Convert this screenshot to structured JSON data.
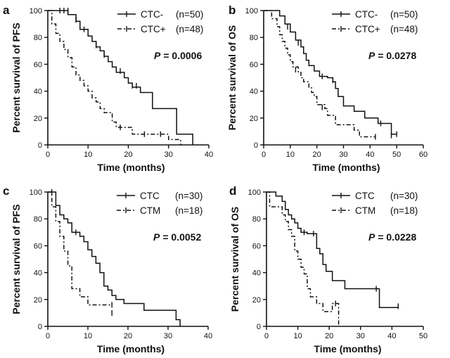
{
  "chart_data": [
    {
      "type": "line",
      "panel": "a",
      "ylabel": "Percent survival of PFS",
      "xlabel": "Time (months)",
      "xlim": [
        0,
        40
      ],
      "xticks": [
        0,
        10,
        20,
        30,
        40
      ],
      "ylim": [
        0,
        100
      ],
      "yticks": [
        0,
        20,
        40,
        60,
        80,
        100
      ],
      "pvalue_label": "P",
      "pvalue_text": "= 0.0006",
      "series": [
        {
          "name": "CTC-",
          "n_text": "(n=50)",
          "style": "solid",
          "steps": [
            [
              0,
              100
            ],
            [
              5,
              97
            ],
            [
              7,
              92
            ],
            [
              8,
              86
            ],
            [
              10,
              81
            ],
            [
              11,
              77
            ],
            [
              12,
              73
            ],
            [
              13,
              70
            ],
            [
              14,
              66
            ],
            [
              15,
              62
            ],
            [
              16,
              58
            ],
            [
              17,
              54
            ],
            [
              19,
              50
            ],
            [
              20,
              46
            ],
            [
              21,
              43
            ],
            [
              23,
              39
            ],
            [
              26,
              27
            ],
            [
              32,
              8
            ],
            [
              36,
              0
            ]
          ],
          "censors": [
            [
              3,
              100
            ],
            [
              4,
              100
            ],
            [
              5,
              100
            ],
            [
              7,
              93
            ],
            [
              9,
              86
            ],
            [
              12,
              74
            ],
            [
              14,
              67
            ],
            [
              18,
              55
            ],
            [
              21,
              44
            ],
            [
              22,
              44
            ]
          ]
        },
        {
          "name": "CTC+",
          "n_text": "(n=48)",
          "style": "dash-dot",
          "steps": [
            [
              0,
              100
            ],
            [
              1,
              90
            ],
            [
              2,
              83
            ],
            [
              3,
              77
            ],
            [
              4,
              71
            ],
            [
              5,
              65
            ],
            [
              6,
              58
            ],
            [
              7,
              52
            ],
            [
              8,
              48
            ],
            [
              9,
              44
            ],
            [
              10,
              40
            ],
            [
              11,
              35
            ],
            [
              12,
              32
            ],
            [
              13,
              27
            ],
            [
              14,
              24
            ],
            [
              16,
              17
            ],
            [
              17,
              13
            ],
            [
              21,
              8
            ],
            [
              30,
              4
            ],
            [
              33,
              0
            ]
          ],
          "censors": [
            [
              18,
              13
            ],
            [
              24,
              8
            ],
            [
              28,
              8
            ]
          ]
        }
      ]
    },
    {
      "type": "line",
      "panel": "b",
      "ylabel": "Percent survival of OS",
      "xlabel": "Time (months)",
      "xlim": [
        0,
        60
      ],
      "xticks": [
        0,
        10,
        20,
        30,
        40,
        50,
        60
      ],
      "ylim": [
        0,
        100
      ],
      "yticks": [
        0,
        20,
        40,
        60,
        80,
        100
      ],
      "pvalue_label": "P",
      "pvalue_text": "= 0.0278",
      "series": [
        {
          "name": "CTC-",
          "n_text": "(n=50)",
          "style": "solid",
          "steps": [
            [
              0,
              100
            ],
            [
              6,
              96
            ],
            [
              8,
              90
            ],
            [
              10,
              84
            ],
            [
              12,
              78
            ],
            [
              14,
              73
            ],
            [
              15,
              68
            ],
            [
              16,
              63
            ],
            [
              17,
              59
            ],
            [
              19,
              55
            ],
            [
              21,
              51
            ],
            [
              24,
              50
            ],
            [
              26,
              47
            ],
            [
              27,
              42
            ],
            [
              28,
              36
            ],
            [
              30,
              29
            ],
            [
              34,
              25
            ],
            [
              38,
              20
            ],
            [
              43,
              16
            ],
            [
              48,
              8
            ]
          ],
          "censors": [
            [
              9,
              88
            ],
            [
              13,
              76
            ],
            [
              22,
              51
            ],
            [
              26,
              48
            ],
            [
              44,
              16
            ],
            [
              48,
              7
            ],
            [
              50,
              8
            ]
          ]
        },
        {
          "name": "CTC+",
          "n_text": "(n=48)",
          "style": "dash-dot",
          "steps": [
            [
              0,
              100
            ],
            [
              3,
              94
            ],
            [
              5,
              88
            ],
            [
              6,
              82
            ],
            [
              7,
              77
            ],
            [
              8,
              72
            ],
            [
              9,
              67
            ],
            [
              10,
              62
            ],
            [
              11,
              58
            ],
            [
              13,
              54
            ],
            [
              14,
              50
            ],
            [
              15,
              47
            ],
            [
              17,
              43
            ],
            [
              18,
              39
            ],
            [
              19,
              36
            ],
            [
              20,
              30
            ],
            [
              23,
              27
            ],
            [
              24,
              22
            ],
            [
              27,
              15
            ],
            [
              34,
              11
            ],
            [
              36,
              6
            ]
          ],
          "censors": [
            [
              12,
              56
            ],
            [
              22,
              28
            ],
            [
              42,
              6
            ]
          ]
        }
      ]
    },
    {
      "type": "line",
      "panel": "c",
      "ylabel": "Percent survival of PFS",
      "xlabel": "Time (months)",
      "xlim": [
        0,
        40
      ],
      "xticks": [
        0,
        10,
        20,
        30,
        40
      ],
      "ylim": [
        0,
        100
      ],
      "yticks": [
        0,
        20,
        40,
        60,
        80,
        100
      ],
      "pvalue_label": "P",
      "pvalue_text": "= 0.0052",
      "series": [
        {
          "name": "CTC",
          "n_text": "(n=30)",
          "style": "solid",
          "steps": [
            [
              0,
              100
            ],
            [
              2,
              90
            ],
            [
              3,
              83
            ],
            [
              4,
              80
            ],
            [
              5,
              77
            ],
            [
              6,
              70
            ],
            [
              8,
              67
            ],
            [
              9,
              63
            ],
            [
              10,
              57
            ],
            [
              11,
              52
            ],
            [
              12,
              47
            ],
            [
              13,
              40
            ],
            [
              14,
              30
            ],
            [
              15,
              27
            ],
            [
              16,
              23
            ],
            [
              17,
              20
            ],
            [
              19,
              17
            ],
            [
              24,
              12
            ],
            [
              32,
              5
            ],
            [
              33,
              0
            ]
          ],
          "censors": [
            [
              1,
              100
            ],
            [
              7,
              70
            ]
          ]
        },
        {
          "name": "CTM",
          "n_text": "(n=18)",
          "style": "dash-dot",
          "steps": [
            [
              0,
              100
            ],
            [
              1,
              89
            ],
            [
              2,
              78
            ],
            [
              3,
              67
            ],
            [
              4,
              56
            ],
            [
              5,
              45
            ],
            [
              6,
              28
            ],
            [
              8,
              22
            ],
            [
              10,
              16
            ]
          ],
          "censors": [
            [
              16,
              16
            ],
            [
              16,
              10
            ]
          ]
        }
      ]
    },
    {
      "type": "line",
      "panel": "d",
      "ylabel": "Percent survival of OS",
      "xlabel": "Time (months)",
      "xlim": [
        0,
        50
      ],
      "xticks": [
        0,
        10,
        20,
        30,
        40,
        50
      ],
      "ylim": [
        0,
        100
      ],
      "yticks": [
        0,
        20,
        40,
        60,
        80,
        100
      ],
      "pvalue_label": "P",
      "pvalue_text": "= 0.0228",
      "series": [
        {
          "name": "CTC",
          "n_text": "(n=30)",
          "style": "solid",
          "steps": [
            [
              0,
              100
            ],
            [
              3,
              97
            ],
            [
              5,
              93
            ],
            [
              6,
              87
            ],
            [
              7,
              83
            ],
            [
              8,
              80
            ],
            [
              9,
              77
            ],
            [
              10,
              73
            ],
            [
              11,
              70
            ],
            [
              13,
              69
            ],
            [
              16,
              58
            ],
            [
              17,
              54
            ],
            [
              18,
              46
            ],
            [
              19,
              41
            ],
            [
              21,
              34
            ],
            [
              25,
              28
            ],
            [
              36,
              14
            ],
            [
              42,
              15
            ]
          ],
          "censors": [
            [
              12,
              70
            ],
            [
              15,
              69
            ],
            [
              35,
              28
            ],
            [
              42,
              15
            ]
          ]
        },
        {
          "name": "CTM",
          "n_text": "(n=18)",
          "style": "dash-dot",
          "steps": [
            [
              0,
              100
            ],
            [
              1,
              89
            ],
            [
              5,
              83
            ],
            [
              6,
              78
            ],
            [
              7,
              72
            ],
            [
              8,
              67
            ],
            [
              9,
              56
            ],
            [
              10,
              50
            ],
            [
              11,
              44
            ],
            [
              12,
              39
            ],
            [
              13,
              28
            ],
            [
              14,
              22
            ],
            [
              16,
              17
            ],
            [
              18,
              11
            ],
            [
              21,
              17
            ],
            [
              23,
              0
            ]
          ],
          "censors": [
            [
              22,
              17
            ]
          ]
        }
      ]
    }
  ]
}
